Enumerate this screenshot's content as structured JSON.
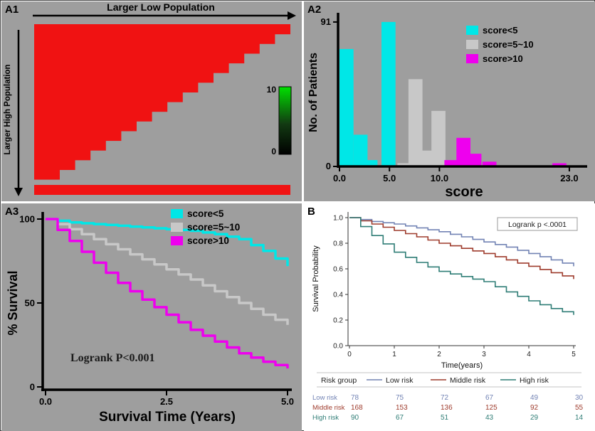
{
  "panels": {
    "a1": {
      "label": "A1"
    },
    "a2": {
      "label": "A2"
    },
    "a3": {
      "label": "A3"
    },
    "b": {
      "label": "B"
    }
  },
  "chart_data": [
    {
      "id": "A1",
      "type": "heatmap",
      "top_axis_label": "Larger Low Population",
      "left_axis_label": "Larger High Population",
      "heat_fill_color": "#f01212",
      "bottom_bar_color": "#f01212",
      "background": "#9e9e9e",
      "n_steps": 16,
      "colorbar": {
        "max_label": "10",
        "min_label": "0",
        "max_color": "#00e000",
        "mid_color": "#123a12",
        "min_color": "#000000"
      }
    },
    {
      "id": "A2",
      "type": "bar",
      "xlabel": "score",
      "ylabel": "No. of Patients",
      "xlim": [
        0,
        24.5
      ],
      "ylim": [
        0,
        95
      ],
      "xticks": [
        0,
        5,
        10,
        23
      ],
      "xtick_labels": [
        "0.0",
        "5.0",
        "10.0",
        "23.0"
      ],
      "yticks": [
        0,
        91
      ],
      "ytick_labels": [
        "0",
        "91"
      ],
      "bar_width": 1.4,
      "legend": [
        {
          "label": "score<5",
          "color": "#00e7e7"
        },
        {
          "label": "score=5~10",
          "color": "#c8c8c8"
        },
        {
          "label": "score>10",
          "color": "#ee00ee"
        }
      ],
      "bars": [
        {
          "x": 0.7,
          "height": 74,
          "color": "#00e7e7"
        },
        {
          "x": 2.1,
          "height": 20,
          "color": "#00e7e7"
        },
        {
          "x": 3.1,
          "height": 4,
          "color": "#00e7e7"
        },
        {
          "x": 4.9,
          "height": 91,
          "color": "#00e7e7"
        },
        {
          "x": 6.5,
          "height": 2,
          "color": "#c8c8c8"
        },
        {
          "x": 7.6,
          "height": 55,
          "color": "#c8c8c8"
        },
        {
          "x": 8.7,
          "height": 10,
          "color": "#c8c8c8"
        },
        {
          "x": 9.9,
          "height": 35,
          "color": "#c8c8c8"
        },
        {
          "x": 11.2,
          "height": 4,
          "color": "#ee00ee"
        },
        {
          "x": 12.4,
          "height": 18,
          "color": "#ee00ee"
        },
        {
          "x": 13.5,
          "height": 8,
          "color": "#ee00ee"
        },
        {
          "x": 15.0,
          "height": 3,
          "color": "#ee00ee"
        },
        {
          "x": 22.0,
          "height": 2,
          "color": "#ee00ee"
        }
      ]
    },
    {
      "id": "A3",
      "type": "line",
      "step": true,
      "xlabel": "Survival Time (Years)",
      "ylabel": "% Survival",
      "xlim": [
        0,
        5.15
      ],
      "ylim": [
        0,
        104
      ],
      "xticks": [
        0,
        2.5,
        5
      ],
      "xtick_labels": [
        "0.0",
        "2.5",
        "5.0"
      ],
      "yticks": [
        0,
        50,
        100
      ],
      "ytick_labels": [
        "0",
        "50",
        "100"
      ],
      "annotation": "Logrank P<0.001",
      "legend": [
        {
          "label": "score<5",
          "color": "#00e7e7"
        },
        {
          "label": "score=5~10",
          "color": "#c8c8c8"
        },
        {
          "label": "score>10",
          "color": "#ee00ee"
        }
      ],
      "series": [
        {
          "name": "score<5",
          "color": "#00e7e7",
          "x": [
            0,
            0.5,
            1,
            1.5,
            2,
            2.5,
            3,
            3.5,
            4,
            4.5,
            5
          ],
          "y": [
            100,
            98,
            97,
            96,
            95,
            94,
            93,
            91,
            88,
            81,
            72
          ]
        },
        {
          "name": "score=5~10",
          "color": "#c8c8c8",
          "x": [
            0,
            0.5,
            1,
            1.5,
            2,
            2.5,
            3,
            3.5,
            4,
            4.5,
            5
          ],
          "y": [
            100,
            94,
            88,
            82,
            76,
            70,
            64,
            57,
            50,
            43,
            37
          ]
        },
        {
          "name": "score>10",
          "color": "#ee00ee",
          "x": [
            0,
            0.5,
            1,
            1.5,
            2,
            2.5,
            3,
            3.5,
            4,
            4.5,
            5
          ],
          "y": [
            100,
            87,
            74,
            62,
            52,
            43,
            34,
            27,
            20,
            15,
            11
          ]
        }
      ]
    },
    {
      "id": "B",
      "type": "line",
      "step": true,
      "xlabel": "Time(years)",
      "ylabel": "Survival Probability",
      "xlim": [
        0,
        5.05
      ],
      "ylim": [
        0,
        1.0
      ],
      "xticks": [
        0,
        1,
        2,
        3,
        4,
        5
      ],
      "xtick_labels": [
        "0",
        "1",
        "2",
        "3",
        "4",
        "5"
      ],
      "yticks": [
        0,
        0.2,
        0.4,
        0.6,
        0.8,
        1.0
      ],
      "ytick_labels": [
        "0.0",
        "0.2",
        "0.4",
        "0.6",
        "0.8",
        "1.0"
      ],
      "annotation": "Logrank p <.0001",
      "legend_title": "Risk group",
      "series": [
        {
          "name": "Low risk",
          "color": "#7283b4",
          "x": [
            0,
            0.5,
            1,
            1.5,
            2,
            2.5,
            3,
            3.5,
            4,
            4.5,
            5
          ],
          "y": [
            1.0,
            0.97,
            0.95,
            0.92,
            0.89,
            0.85,
            0.81,
            0.77,
            0.72,
            0.67,
            0.62
          ]
        },
        {
          "name": "Middle risk",
          "color": "#9e3b2c",
          "x": [
            0,
            0.5,
            1,
            1.5,
            2,
            2.5,
            3,
            3.5,
            4,
            4.5,
            5
          ],
          "y": [
            1.0,
            0.95,
            0.9,
            0.85,
            0.8,
            0.76,
            0.72,
            0.67,
            0.62,
            0.57,
            0.52
          ]
        },
        {
          "name": "High risk",
          "color": "#2f7d76",
          "x": [
            0,
            0.5,
            1,
            1.5,
            2,
            2.5,
            3,
            3.5,
            4,
            4.5,
            5
          ],
          "y": [
            1.0,
            0.86,
            0.73,
            0.65,
            0.58,
            0.54,
            0.5,
            0.42,
            0.35,
            0.29,
            0.24
          ]
        }
      ],
      "risk_table": {
        "time_points": [
          0,
          1,
          2,
          3,
          4,
          5
        ],
        "rows": [
          {
            "label": "Low risk",
            "color": "#7283b4",
            "values": [
              "78",
              "75",
              "72",
              "67",
              "49",
              "30"
            ]
          },
          {
            "label": "Middle risk",
            "color": "#9e3b2c",
            "values": [
              "168",
              "153",
              "136",
              "125",
              "92",
              "55"
            ]
          },
          {
            "label": "High risk",
            "color": "#2f7d76",
            "values": [
              "90",
              "67",
              "51",
              "43",
              "29",
              "14"
            ]
          }
        ]
      }
    }
  ]
}
